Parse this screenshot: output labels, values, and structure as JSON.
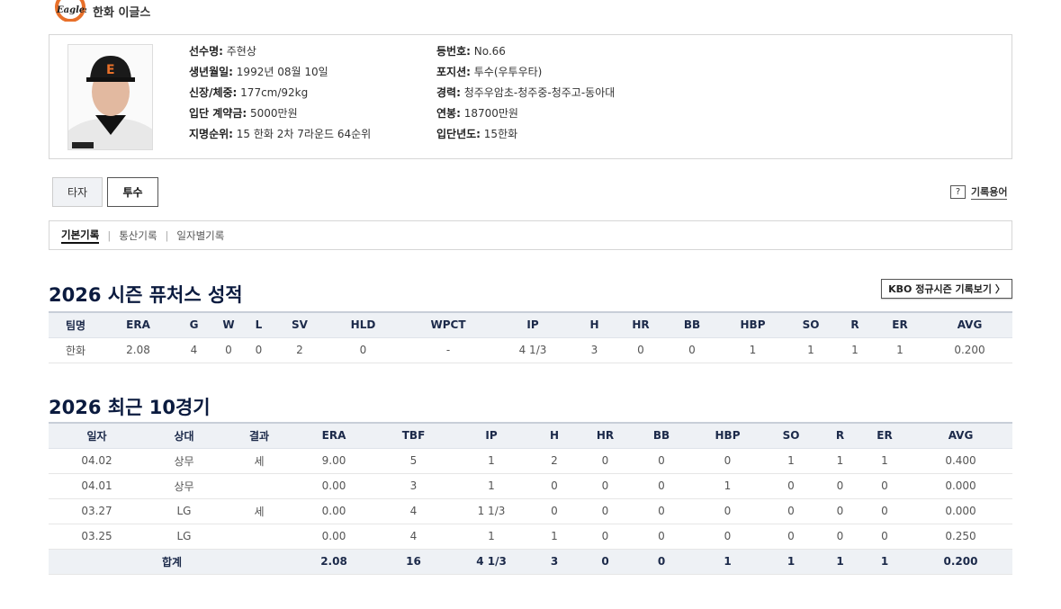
{
  "header": {
    "team_name": "한화 이글스",
    "logo_text": "Eagles"
  },
  "profile": {
    "left": [
      {
        "label": "선수명:",
        "value": "주현상"
      },
      {
        "label": "생년월일:",
        "value": "1992년 08월 10일"
      },
      {
        "label": "신장/체중:",
        "value": "177cm/92kg"
      },
      {
        "label": "입단 계약금:",
        "value": "5000만원"
      },
      {
        "label": "지명순위:",
        "value": "15 한화 2차 7라운드 64순위"
      }
    ],
    "right": [
      {
        "label": "등번호:",
        "value": "No.66"
      },
      {
        "label": "포지션:",
        "value": "투수(우투우타)"
      },
      {
        "label": "경력:",
        "value": "청주우암초-청주중-청주고-동아대"
      },
      {
        "label": "연봉:",
        "value": "18700만원"
      },
      {
        "label": "입단년도:",
        "value": "15한화"
      }
    ]
  },
  "tabs": {
    "hitter": "타자",
    "pitcher": "투수",
    "active": "투수"
  },
  "glossary": {
    "icon": "?",
    "label": "기록용어"
  },
  "subtabs": [
    "기본기록",
    "통산기록",
    "일자별기록"
  ],
  "season": {
    "title": "2026 시즌 퓨처스 성적",
    "link": "KBO 정규시즌 기록보기 〉",
    "columns": [
      "팀명",
      "ERA",
      "G",
      "W",
      "L",
      "SV",
      "HLD",
      "WPCT",
      "IP",
      "H",
      "HR",
      "BB",
      "HBP",
      "SO",
      "R",
      "ER",
      "AVG"
    ],
    "rows": [
      [
        "한화",
        "2.08",
        "4",
        "0",
        "0",
        "2",
        "0",
        "-",
        "4 1/3",
        "3",
        "0",
        "0",
        "1",
        "1",
        "1",
        "1",
        "0.200"
      ]
    ]
  },
  "recent": {
    "title": "2026 최근 10경기",
    "columns": [
      "일자",
      "상대",
      "결과",
      "ERA",
      "TBF",
      "IP",
      "H",
      "HR",
      "BB",
      "HBP",
      "SO",
      "R",
      "ER",
      "AVG"
    ],
    "rows": [
      [
        "04.02",
        "상무",
        "세",
        "9.00",
        "5",
        "1",
        "2",
        "0",
        "0",
        "0",
        "1",
        "1",
        "1",
        "0.400"
      ],
      [
        "04.01",
        "상무",
        "",
        "0.00",
        "3",
        "1",
        "0",
        "0",
        "0",
        "1",
        "0",
        "0",
        "0",
        "0.000"
      ],
      [
        "03.27",
        "LG",
        "세",
        "0.00",
        "4",
        "1 1/3",
        "0",
        "0",
        "0",
        "0",
        "0",
        "0",
        "0",
        "0.000"
      ],
      [
        "03.25",
        "LG",
        "",
        "0.00",
        "4",
        "1",
        "1",
        "0",
        "0",
        "0",
        "0",
        "0",
        "0",
        "0.250"
      ]
    ],
    "total": [
      "합계",
      "2.08",
      "16",
      "4 1/3",
      "3",
      "0",
      "0",
      "1",
      "1",
      "1",
      "1",
      "0.200"
    ]
  },
  "colors": {
    "accent": "#0b1b3f",
    "header_bg": "#eef1f5",
    "logo_orange": "#e8702a"
  }
}
